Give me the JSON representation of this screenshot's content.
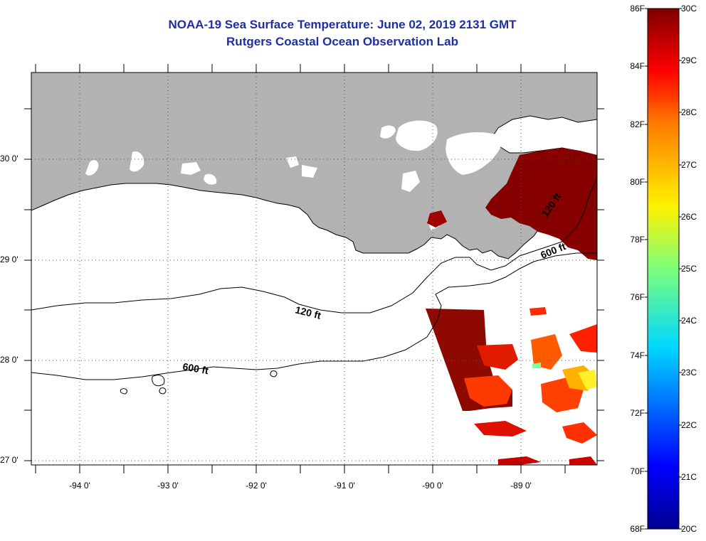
{
  "title": {
    "line1": "NOAA-19 Sea Surface Temperature:  June 02, 2019 2131 GMT",
    "line2": "Rutgers Coastal Ocean Observation Lab"
  },
  "map": {
    "lon_labels": [
      "-94 0'",
      "-93 0'",
      "-92 0'",
      "-91 0'",
      "-90 0'",
      "-89 0'"
    ],
    "lat_labels": [
      "30 0'",
      "29 0'",
      "28 0'",
      "27 0'"
    ],
    "contour_labels": [
      "120 ft",
      "600 ft",
      "120 ft",
      "600 ft"
    ],
    "colors": {
      "land": "#b2b2b2",
      "cloud_or_nodata": "#ffffff",
      "coast": "#000000"
    }
  },
  "colorbar": {
    "fahrenheit_labels": [
      "86F",
      "84F",
      "82F",
      "80F",
      "78F",
      "76F",
      "74F",
      "72F",
      "70F",
      "68F"
    ],
    "celsius_labels": [
      "30C",
      "29C",
      "28C",
      "27C",
      "26C",
      "25C",
      "24C",
      "23C",
      "22C",
      "21C",
      "20C"
    ],
    "range_c": [
      20,
      30
    ],
    "range_f": [
      68,
      86
    ]
  }
}
